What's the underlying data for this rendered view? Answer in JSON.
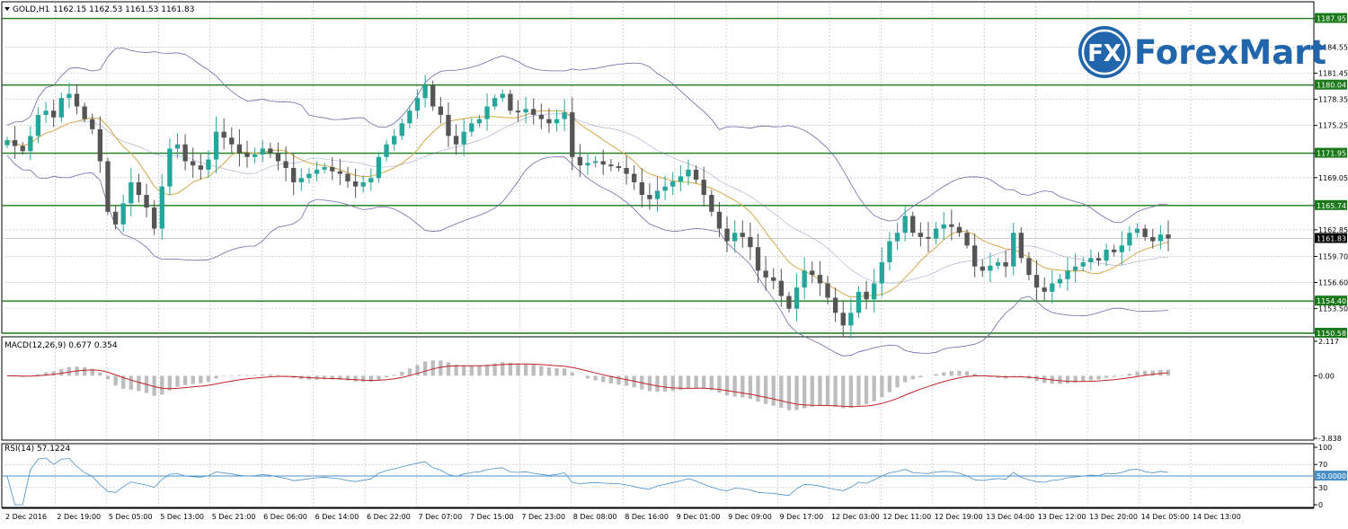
{
  "header": {
    "symbol_label": "GOLD,H1",
    "ohlc": "1162.15 1162.53 1161.53 1161.83"
  },
  "logo": {
    "text": "ForexMart",
    "badge": "FX"
  },
  "indicators": {
    "macd_label": "MACD(12,26,9) 0.677 0.354",
    "rsi_label": "RSI(14) 57.1224"
  },
  "colors": {
    "bull": "#26a69a",
    "bear": "#555555",
    "band": "#6b6ba8",
    "ma": "#d4a74a",
    "level": "#1a7a1a",
    "signal": "#c0222a",
    "hist": "#bdbdbd",
    "rsi": "#4a90c8",
    "grid": "#b8b8b8",
    "logo": "#2166ad"
  },
  "chart_data": [
    {
      "type": "candlestick",
      "title": "GOLD,H1",
      "ylim": [
        1150.58,
        1189.5
      ],
      "y_ticks": [
        "1187.95",
        "1184.55",
        "1181.45",
        "1178.35",
        "1175.25",
        "1171.95",
        "1169.05",
        "1165.74",
        "1162.85",
        "1159.70",
        "1156.60",
        "1153.50",
        "1150.58"
      ],
      "horizontal_levels": [
        1187.95,
        1180.04,
        1171.95,
        1165.74,
        1154.4,
        1150.58
      ],
      "level_labels": [
        "1187.95",
        "1180.04",
        "1171.95",
        "1165.74",
        "1154.40",
        "1150.58"
      ],
      "current_price": 1161.83,
      "current_price_label": "1161.83",
      "x_ticks": [
        "2 Dec 2016",
        "2 Dec 19:00",
        "5 Dec 05:00",
        "5 Dec 13:00",
        "5 Dec 21:00",
        "6 Dec 06:00",
        "6 Dec 14:00",
        "6 Dec 22:00",
        "7 Dec 07:00",
        "7 Dec 15:00",
        "7 Dec 23:00",
        "8 Dec 08:00",
        "8 Dec 16:00",
        "9 Dec 01:00",
        "9 Dec 09:00",
        "9 Dec 17:00",
        "12 Dec 03:00",
        "12 Dec 11:00",
        "12 Dec 19:00",
        "13 Dec 04:00",
        "13 Dec 12:00",
        "13 Dec 20:00",
        "14 Dec 05:00",
        "14 Dec 13:00"
      ],
      "close_path": [
        1173.5,
        1172.8,
        1172.2,
        1174.0,
        1176.5,
        1177.0,
        1176.2,
        1178.5,
        1179.0,
        1177.5,
        1176.0,
        1174.8,
        1171.0,
        1165.0,
        1163.5,
        1166.0,
        1168.5,
        1167.0,
        1165.5,
        1163.0,
        1168.0,
        1172.5,
        1173.0,
        1171.0,
        1170.5,
        1170.0,
        1171.2,
        1174.5,
        1173.8,
        1173.0,
        1172.0,
        1171.5,
        1171.8,
        1172.5,
        1172.0,
        1171.0,
        1170.2,
        1168.5,
        1169.0,
        1169.5,
        1170.0,
        1170.3,
        1169.8,
        1169.5,
        1168.6,
        1168.0,
        1168.5,
        1169.0,
        1171.5,
        1173.0,
        1174.0,
        1175.5,
        1177.0,
        1178.5,
        1180.0,
        1177.5,
        1176.5,
        1174.0,
        1173.0,
        1174.5,
        1175.5,
        1176.0,
        1177.5,
        1178.5,
        1179.0,
        1177.0,
        1176.8,
        1177.2,
        1176.5,
        1176.0,
        1175.5,
        1176.0,
        1176.8,
        1171.5,
        1170.5,
        1170.8,
        1171.0,
        1170.6,
        1170.4,
        1170.2,
        1169.5,
        1168.5,
        1167.0,
        1166.5,
        1167.5,
        1168.0,
        1168.6,
        1169.2,
        1170.0,
        1168.8,
        1167.0,
        1165.0,
        1163.0,
        1161.5,
        1162.5,
        1162.0,
        1160.8,
        1158.0,
        1157.2,
        1156.8,
        1155.0,
        1153.5,
        1156.0,
        1158.0,
        1157.5,
        1156.5,
        1154.8,
        1153.0,
        1151.5,
        1153.0,
        1155.5,
        1154.6,
        1156.5,
        1159.0,
        1161.5,
        1162.5,
        1164.5,
        1162.5,
        1162.0,
        1161.8,
        1163.0,
        1163.5,
        1163.2,
        1162.5,
        1161.0,
        1158.5,
        1158.0,
        1158.6,
        1159.0,
        1158.5,
        1162.5,
        1159.5,
        1157.5,
        1156.0,
        1155.5,
        1156.5,
        1157.0,
        1158.0,
        1158.5,
        1159.0,
        1159.5,
        1159.2,
        1160.5,
        1160.2,
        1161.0,
        1162.5,
        1163.0,
        1162.0,
        1161.5,
        1162.3,
        1161.83
      ],
      "bollinger": {
        "period": 20,
        "deviations": 2
      },
      "moving_average": {
        "period": 10
      }
    },
    {
      "type": "macd",
      "title": "MACD(12,26,9) 0.677 0.354",
      "params": [
        12,
        26,
        9
      ],
      "values": {
        "main": 0.677,
        "signal": 0.354
      },
      "ylim": [
        -3.838,
        2.117
      ],
      "y_ticks": [
        "2.117",
        "0.00",
        "-3.838"
      ]
    },
    {
      "type": "rsi",
      "title": "RSI(14) 57.1224",
      "period": 14,
      "value": 57.1224,
      "ylim": [
        0,
        100
      ],
      "levels": [
        70,
        50,
        30
      ],
      "y_ticks": [
        "100",
        "70",
        "30",
        "0"
      ],
      "level_label": "50.0000"
    }
  ]
}
